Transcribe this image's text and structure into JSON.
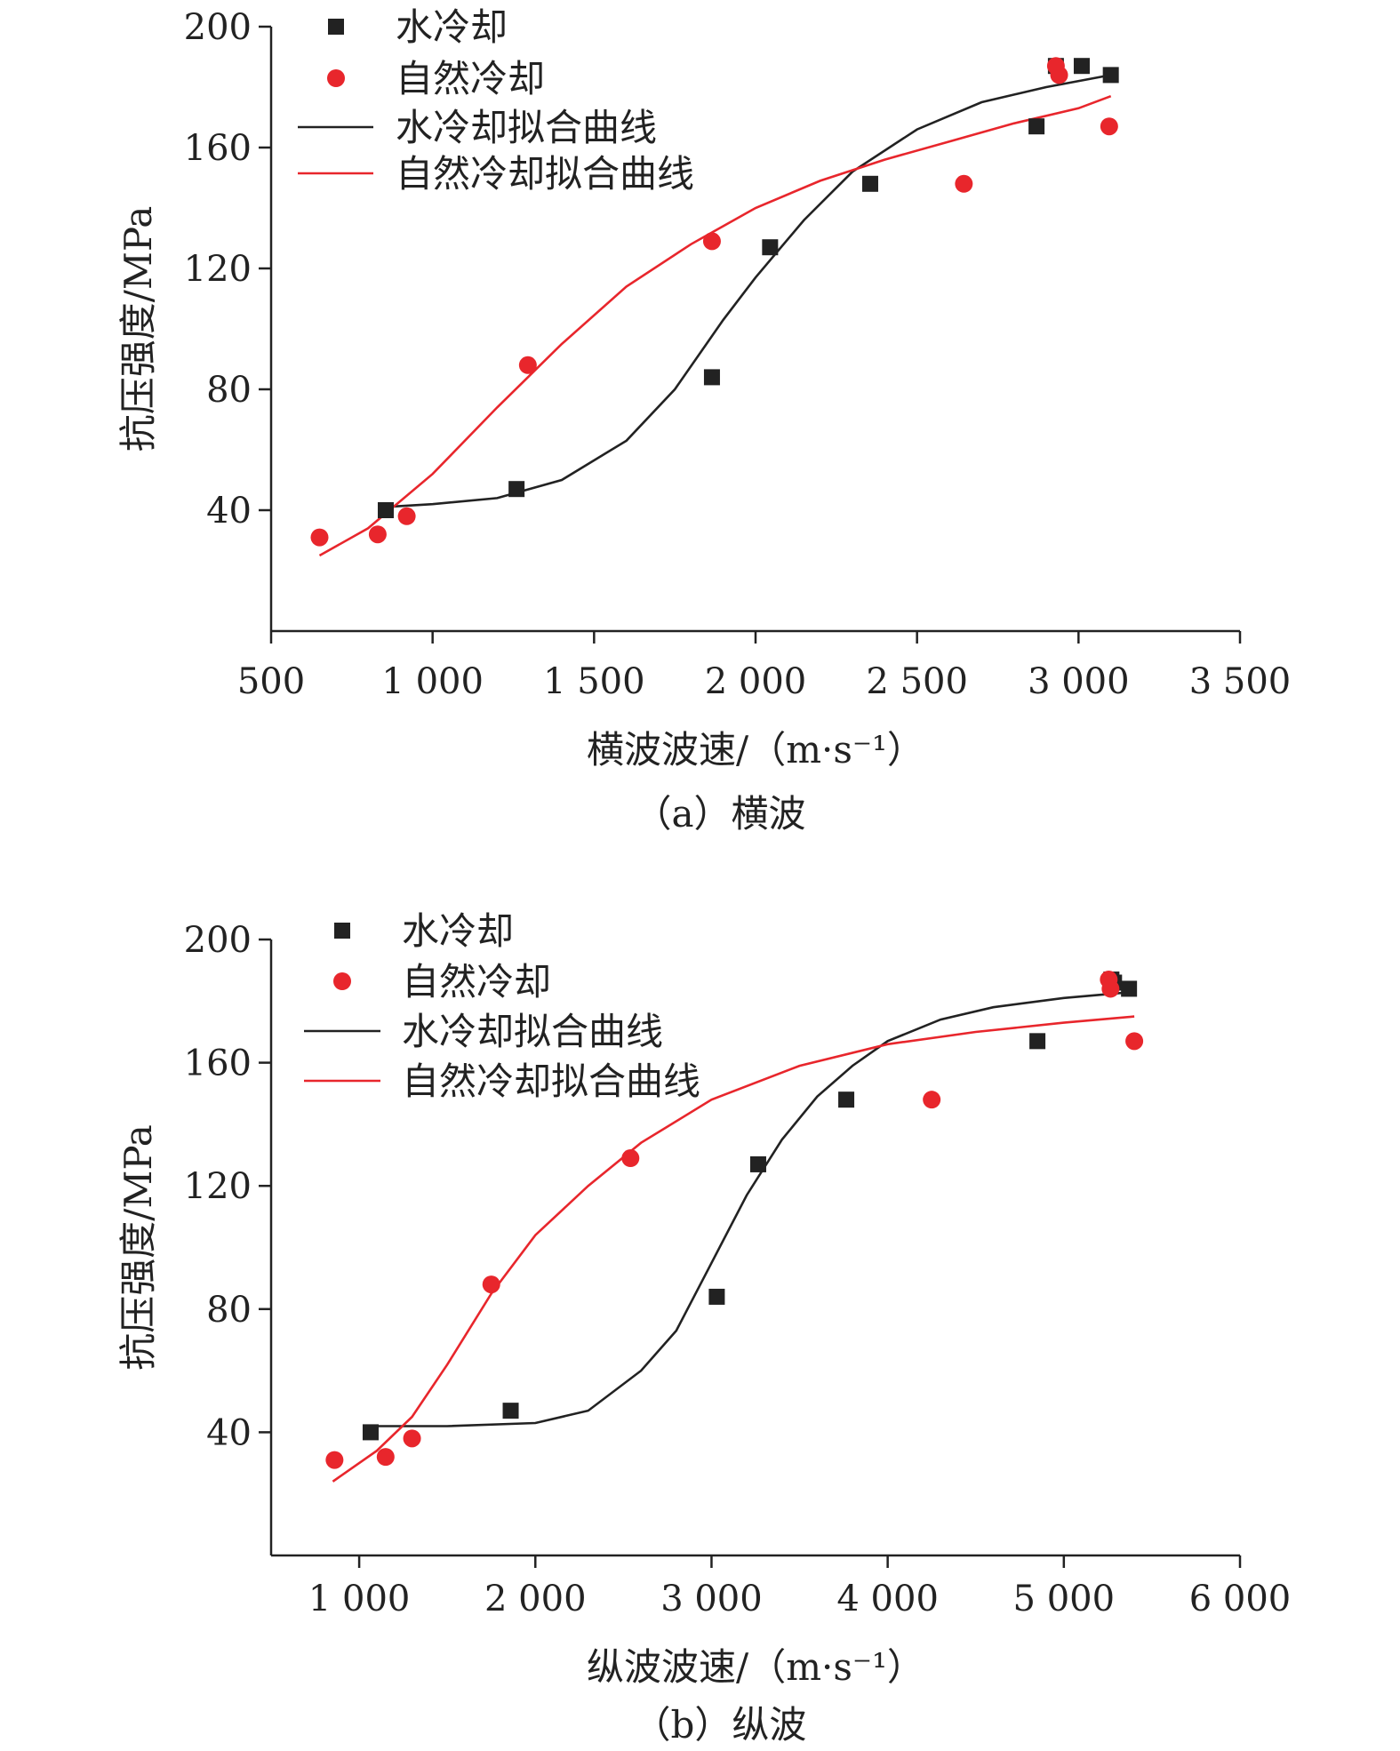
{
  "colors": {
    "water": "#222222",
    "natural": "#e8262c",
    "axis": "#222222"
  },
  "chart_data": [
    {
      "type": "scatter",
      "caption": "（a）横波",
      "xlabel": "横波波速/（m·s⁻¹）",
      "ylabel": "抗压强度/MPa",
      "xlim": [
        500,
        3500
      ],
      "ylim": [
        0,
        200
      ],
      "x_ticks": [
        500,
        1000,
        1500,
        2000,
        2500,
        3000,
        3500
      ],
      "x_tick_labels": [
        "500",
        "1 000",
        "1 500",
        "2 000",
        "2 500",
        "3 000",
        "3 500"
      ],
      "y_ticks": [
        40,
        80,
        120,
        160,
        200
      ],
      "y_tick_labels": [
        "40",
        "80",
        "120",
        "160",
        "200"
      ],
      "legend": {
        "position": "top-left",
        "entries": [
          "水冷却",
          "自然冷却",
          "水冷却拟合曲线",
          "自然冷却拟合曲线"
        ]
      },
      "series": [
        {
          "name": "水冷却",
          "kind": "points",
          "marker": "square",
          "color": "#222222",
          "x": [
            855,
            1260,
            1865,
            2045,
            2355,
            2870,
            2930,
            3010,
            3100
          ],
          "y": [
            40,
            47,
            84,
            127,
            148,
            167,
            187,
            187,
            184
          ]
        },
        {
          "name": "自然冷却",
          "kind": "points",
          "marker": "circle",
          "color": "#e8262c",
          "x": [
            650,
            830,
            920,
            1295,
            1865,
            2645,
            2930,
            2940,
            3095
          ],
          "y": [
            31,
            32,
            38,
            88,
            129,
            148,
            187,
            184,
            167
          ]
        },
        {
          "name": "水冷却拟合曲线",
          "kind": "line",
          "color": "#222222",
          "x": [
            845,
            1000,
            1200,
            1400,
            1600,
            1750,
            1900,
            2000,
            2150,
            2300,
            2500,
            2700,
            2900,
            3100
          ],
          "y": [
            41,
            42,
            44,
            50,
            63,
            80,
            103,
            117,
            136,
            152,
            166,
            175,
            180,
            184
          ]
        },
        {
          "name": "自然冷却拟合曲线",
          "kind": "line",
          "color": "#e8262c",
          "x": [
            650,
            800,
            1000,
            1200,
            1400,
            1600,
            1800,
            2000,
            2200,
            2400,
            2600,
            2800,
            3000,
            3100
          ],
          "y": [
            25,
            34,
            52,
            74,
            95,
            114,
            128,
            140,
            149,
            156,
            162,
            168,
            173,
            177
          ]
        }
      ]
    },
    {
      "type": "scatter",
      "caption": "（b）纵波",
      "xlabel": "纵波波速/（m·s⁻¹）",
      "ylabel": "抗压强度/MPa",
      "xlim": [
        500,
        6000
      ],
      "ylim": [
        0,
        200
      ],
      "x_ticks": [
        1000,
        2000,
        3000,
        4000,
        5000,
        6000
      ],
      "x_tick_labels": [
        "1 000",
        "2 000",
        "3 000",
        "4 000",
        "5 000",
        "6 000"
      ],
      "y_ticks": [
        40,
        80,
        120,
        160,
        200
      ],
      "y_tick_labels": [
        "40",
        "80",
        "120",
        "160",
        "200"
      ],
      "legend": {
        "position": "top-left",
        "entries": [
          "水冷却",
          "自然冷却",
          "水冷却拟合曲线",
          "自然冷却拟合曲线"
        ]
      },
      "series": [
        {
          "name": "水冷却",
          "kind": "points",
          "marker": "square",
          "color": "#222222",
          "x": [
            1065,
            1860,
            3030,
            3265,
            3765,
            4850,
            5270,
            5285,
            5370
          ],
          "y": [
            40,
            47,
            84,
            127,
            148,
            167,
            187,
            186,
            184
          ]
        },
        {
          "name": "自然冷却",
          "kind": "points",
          "marker": "circle",
          "color": "#e8262c",
          "x": [
            860,
            1150,
            1300,
            1750,
            2540,
            4250,
            5255,
            5265,
            5400
          ],
          "y": [
            31,
            32,
            38,
            88,
            129,
            148,
            187,
            184,
            167
          ]
        },
        {
          "name": "水冷却拟合曲线",
          "kind": "line",
          "color": "#222222",
          "x": [
            1060,
            1500,
            2000,
            2300,
            2600,
            2800,
            3000,
            3200,
            3400,
            3600,
            3800,
            4000,
            4300,
            4600,
            5000,
            5400
          ],
          "y": [
            42,
            42,
            43,
            47,
            60,
            73,
            95,
            117,
            135,
            149,
            159,
            167,
            174,
            178,
            181,
            183
          ]
        },
        {
          "name": "自然冷却拟合曲线",
          "kind": "line",
          "color": "#e8262c",
          "x": [
            850,
            1100,
            1300,
            1500,
            1750,
            2000,
            2300,
            2600,
            3000,
            3500,
            4000,
            4500,
            5000,
            5400
          ],
          "y": [
            24,
            34,
            45,
            62,
            85,
            104,
            120,
            134,
            148,
            159,
            166,
            170,
            173,
            175
          ]
        }
      ]
    }
  ]
}
